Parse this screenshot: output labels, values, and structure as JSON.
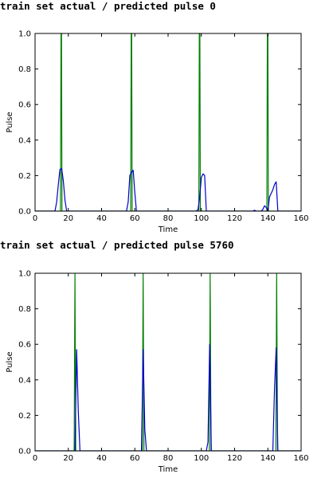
{
  "chart_data": [
    {
      "type": "line",
      "title": "train set actual / predicted pulse 0",
      "xlabel": "Time",
      "ylabel": "Pulse",
      "xlim": [
        0,
        160
      ],
      "ylim": [
        0,
        1.0
      ],
      "xticks": [
        "0",
        "20",
        "40",
        "60",
        "80",
        "100",
        "120",
        "140",
        "160"
      ],
      "yticks": [
        "0.0",
        "0.2",
        "0.4",
        "0.6",
        "0.8",
        "1.0"
      ],
      "grid": false,
      "series": [
        {
          "role": "actual",
          "color": "#007f00",
          "x": [
            0,
            15.3,
            15.6,
            15.9,
            16.2,
            57.5,
            57.8,
            58.1,
            58.4,
            98.5,
            98.8,
            99.1,
            99.4,
            139.4,
            139.7,
            140.0,
            140.3,
            160
          ],
          "y": [
            0,
            0,
            1.0,
            1.0,
            0,
            0,
            1.0,
            1.0,
            0,
            0,
            1.0,
            1.0,
            0,
            0,
            1.0,
            1.0,
            0,
            0
          ]
        },
        {
          "role": "predicted",
          "color": "#0000cc",
          "x": [
            0,
            12,
            13,
            14,
            15,
            16,
            17,
            18,
            19,
            55,
            56,
            57,
            58,
            59,
            60,
            61,
            97,
            98,
            99,
            100,
            101,
            102,
            103,
            131,
            132,
            133,
            136,
            137,
            138,
            139,
            140,
            141,
            142,
            143,
            144,
            145,
            146,
            160
          ],
          "y": [
            0,
            0,
            0.05,
            0.15,
            0.235,
            0.24,
            0.17,
            0.06,
            0,
            0,
            0.05,
            0.2,
            0.22,
            0.23,
            0.1,
            0,
            0,
            0.01,
            0.08,
            0.19,
            0.21,
            0.2,
            0.0,
            0,
            0.005,
            0,
            0,
            0.01,
            0.03,
            0.02,
            0,
            0.08,
            0.1,
            0.12,
            0.15,
            0.165,
            0,
            0
          ]
        }
      ]
    },
    {
      "type": "line",
      "title": "train set actual / predicted pulse 5760",
      "xlabel": "Time",
      "ylabel": "Pulse",
      "xlim": [
        0,
        160
      ],
      "ylim": [
        0,
        1.0
      ],
      "xticks": [
        "0",
        "20",
        "40",
        "60",
        "80",
        "100",
        "120",
        "140",
        "160"
      ],
      "yticks": [
        "0.0",
        "0.2",
        "0.4",
        "0.6",
        "0.8",
        "1.0"
      ],
      "grid": false,
      "series": [
        {
          "role": "actual",
          "color": "#007f00",
          "x": [
            0,
            23.5,
            24.0,
            24.5,
            64.5,
            65.0,
            65.5,
            104.8,
            105.3,
            105.8,
            144.8,
            145.3,
            145.8,
            160
          ],
          "y": [
            0,
            0,
            1.0,
            0,
            0,
            1.0,
            0,
            0,
            1.0,
            0,
            0,
            1.0,
            0,
            0
          ]
        },
        {
          "role": "predicted",
          "color": "#0000cc",
          "x": [
            0,
            24,
            25,
            26,
            27,
            64,
            65,
            66,
            67,
            103,
            104,
            105,
            106,
            143,
            144,
            145,
            146,
            160
          ],
          "y": [
            0,
            0,
            0.57,
            0.22,
            0,
            0,
            0.57,
            0.12,
            0,
            0,
            0.05,
            0.6,
            0,
            0,
            0.35,
            0.58,
            0,
            0
          ]
        }
      ]
    }
  ]
}
